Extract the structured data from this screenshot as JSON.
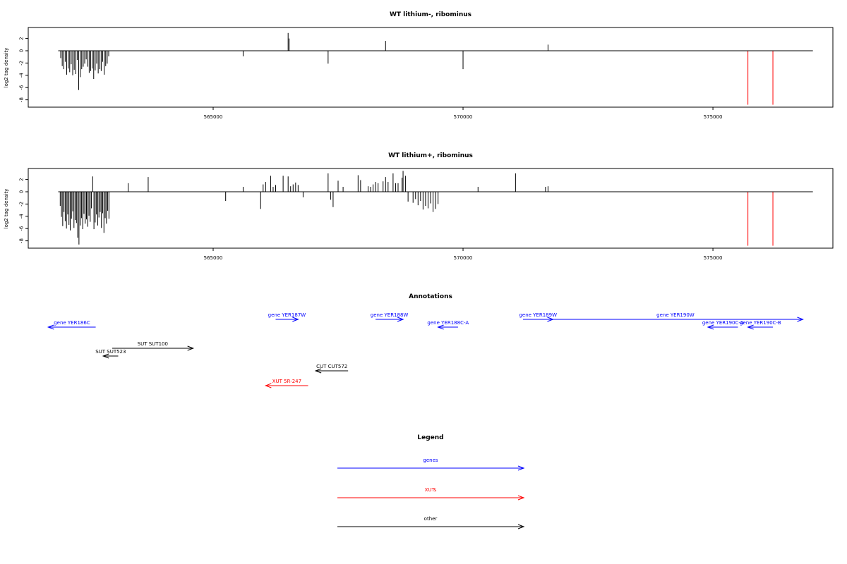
{
  "chart_data": [
    {
      "type": "bar",
      "title": "WT lithium-, ribominus",
      "ylabel": "log2 tag density",
      "xlim": [
        561300,
        577400
      ],
      "ylim": [
        -8.8,
        4
      ],
      "x_ticks": [
        565000,
        570000,
        575000
      ],
      "x_tick_labels": [
        "565000",
        "570000",
        "575000"
      ],
      "y_ticks": [
        2,
        0,
        -2,
        -4,
        -6,
        -8
      ],
      "y_tick_labels": [
        "2",
        "0",
        "-2",
        "-4",
        "-6",
        "-8"
      ],
      "baseline": {
        "x_start": 561900,
        "x_end": 577000
      },
      "series": [
        {
          "color": "#000000",
          "x": [
            561950,
            561980,
            562010,
            562040,
            562070,
            562100,
            562130,
            562160,
            562190,
            562220,
            562250,
            562280,
            562310,
            562340,
            562370,
            562400,
            562430,
            562460,
            562490,
            562520,
            562550,
            562580,
            562610,
            562640,
            562670,
            562700,
            562730,
            562760,
            562790,
            562820,
            562850,
            562880,
            562910,
            565600,
            566500,
            566520,
            567300,
            568450,
            570000,
            571700
          ],
          "values": [
            -1.2,
            -2.5,
            -3.0,
            -1.8,
            -3.9,
            -2.9,
            -3.5,
            -2.2,
            -4.0,
            -3.1,
            -3.8,
            -1.5,
            -6.4,
            -4.3,
            -3.0,
            -2.6,
            -2.1,
            -1.4,
            -2.6,
            -3.6,
            -3.3,
            -2.9,
            -4.6,
            -3.2,
            -2.1,
            -3.7,
            -3.0,
            -3.3,
            -1.8,
            -3.9,
            -2.5,
            -2.1,
            -0.9,
            -0.9,
            2.9,
            2.0,
            -2.1,
            1.6,
            -3.0,
            1.0
          ]
        },
        {
          "color": "#ff0000",
          "x": [
            575700,
            576200
          ],
          "values": [
            -8.8,
            -8.8
          ]
        }
      ]
    },
    {
      "type": "bar",
      "title": "WT lithium+, ribominus",
      "ylabel": "log2 tag density",
      "xlim": [
        561300,
        577400
      ],
      "ylim": [
        -8.8,
        4
      ],
      "x_ticks": [
        565000,
        570000,
        575000
      ],
      "x_tick_labels": [
        "565000",
        "570000",
        "575000"
      ],
      "y_ticks": [
        2,
        0,
        -2,
        -4,
        -6,
        -8
      ],
      "y_tick_labels": [
        "2",
        "0",
        "-2",
        "-4",
        "-6",
        "-8"
      ],
      "baseline": {
        "x_start": 561900,
        "x_end": 577000
      },
      "series": [
        {
          "color": "#000000",
          "x": [
            561940,
            561965,
            561990,
            562015,
            562040,
            562065,
            562090,
            562115,
            562140,
            562165,
            562190,
            562215,
            562240,
            562265,
            562290,
            562315,
            562340,
            562365,
            562390,
            562415,
            562440,
            562465,
            562490,
            562515,
            562540,
            562565,
            562590,
            562615,
            562640,
            562665,
            562690,
            562715,
            562740,
            562765,
            562790,
            562815,
            562840,
            562865,
            562890,
            562915,
            563300,
            563700,
            565250,
            565600,
            565950,
            566000,
            566050,
            566150,
            566200,
            566250,
            566400,
            566500,
            566550,
            566600,
            566650,
            566700,
            566800,
            567300,
            567350,
            567400,
            567500,
            567600,
            567900,
            567950,
            568100,
            568150,
            568200,
            568250,
            568300,
            568400,
            568450,
            568500,
            568600,
            568650,
            568700,
            568780,
            568800,
            568850,
            568900,
            569000,
            569050,
            569100,
            569150,
            569200,
            569250,
            569300,
            569350,
            569400,
            569450,
            569500,
            570300,
            571050,
            571650,
            571700
          ],
          "values": [
            -2.3,
            -4.1,
            -5.6,
            -3.3,
            -4.8,
            -6.0,
            -3.7,
            -5.4,
            -6.3,
            -4.4,
            -3.2,
            -5.9,
            -4.6,
            -5.1,
            -7.5,
            -8.6,
            -5.5,
            -4.3,
            -6.1,
            -3.6,
            -5.2,
            -4.5,
            -5.7,
            -3.9,
            -4.9,
            -2.7,
            2.5,
            -6.1,
            -5.0,
            -3.7,
            -5.5,
            -4.2,
            -3.3,
            -5.9,
            -3.5,
            -6.7,
            -4.3,
            -5.2,
            -3.1,
            -4.4,
            1.4,
            2.4,
            -1.5,
            0.8,
            -2.8,
            1.2,
            1.6,
            2.6,
            0.8,
            1.1,
            2.6,
            2.5,
            0.9,
            1.2,
            1.5,
            1.1,
            -0.9,
            3.0,
            -1.3,
            -2.5,
            1.8,
            0.8,
            2.7,
            1.9,
            0.9,
            0.8,
            1.2,
            1.6,
            1.4,
            1.7,
            2.4,
            1.6,
            3.0,
            1.4,
            1.4,
            2.3,
            3.4,
            2.6,
            -1.6,
            -1.8,
            -1.2,
            -2.2,
            -1.5,
            -2.9,
            -2.3,
            -2.7,
            -1.9,
            -3.3,
            -2.8,
            -2.0,
            0.8,
            3.0,
            0.8,
            0.9
          ]
        },
        {
          "color": "#ff0000",
          "x": [
            575700,
            576200
          ],
          "values": [
            -8.8,
            -8.8
          ]
        }
      ]
    }
  ],
  "annotations": {
    "title": "Annotations",
    "features": [
      {
        "label": "gene YER186C",
        "color": "#0000ff",
        "start": 562650,
        "end": 561700,
        "row": 1
      },
      {
        "label": "gene YER187W",
        "color": "#0000ff",
        "start": 566250,
        "end": 566700,
        "row": 0
      },
      {
        "label": "gene YER188W",
        "color": "#0000ff",
        "start": 568250,
        "end": 568800,
        "row": 0
      },
      {
        "label": "gene YER188C-A",
        "color": "#0000ff",
        "start": 569900,
        "end": 569500,
        "row": 1
      },
      {
        "label": "gene YER189W",
        "color": "#0000ff",
        "start": 571200,
        "end": 571800,
        "row": 0
      },
      {
        "label": "gene YER190W",
        "color": "#0000ff",
        "start": 571700,
        "end": 576800,
        "row": 0
      },
      {
        "label": "gene YER190C-A",
        "color": "#0000ff",
        "start": 575500,
        "end": 574900,
        "row": 1
      },
      {
        "label": "gene YER190C-B",
        "color": "#0000ff",
        "start": 576200,
        "end": 575700,
        "row": 1
      },
      {
        "label": "SUT SUT100",
        "color": "#000000",
        "start": 562980,
        "end": 564600,
        "row": 2
      },
      {
        "label": "SUT SUT523",
        "color": "#000000",
        "start": 563100,
        "end": 562800,
        "row": 3
      },
      {
        "label": "CUT CUT572",
        "color": "#000000",
        "start": 567700,
        "end": 567050,
        "row": 4
      },
      {
        "label": "XUT 5R-247",
        "color": "#ff0000",
        "start": 566900,
        "end": 566050,
        "row": 5
      }
    ]
  },
  "legend": {
    "title": "Legend",
    "items": [
      {
        "label": "genes",
        "color": "#0000ff"
      },
      {
        "label": "XUTs",
        "color": "#ff0000"
      },
      {
        "label": "other",
        "color": "#000000"
      }
    ]
  }
}
